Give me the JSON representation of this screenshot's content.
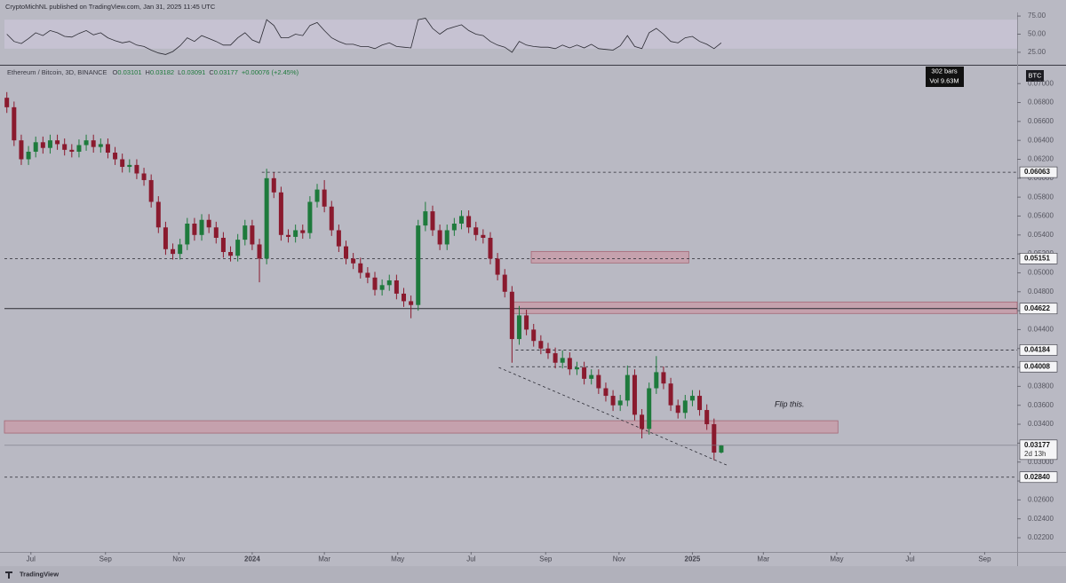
{
  "chart_data": {
    "type": "candlestick",
    "publisher": "CryptoMichNL published on TradingView.com, Jan 31, 2025 11:45 UTC",
    "title": "Ethereum / Bitcoin, 3D, BINANCE",
    "ohlc_labels": [
      "O",
      "H",
      "L",
      "C"
    ],
    "change": "+0.00076 (+2.45%)",
    "info": [
      "302 bars",
      "Vol 9.63M"
    ],
    "currency": "BTC",
    "annotation": "Flip this.",
    "brand": "TradingView",
    "up_color": "#1e7a3c",
    "down_color": "#8a1a2e",
    "xlim": [
      "2023-06-09",
      "2025-09-28"
    ],
    "xticks": [
      {
        "value": "2023-07-01",
        "label": "Jul"
      },
      {
        "value": "2023-09-01",
        "label": "Sep"
      },
      {
        "value": "2023-11-01",
        "label": "Nov"
      },
      {
        "value": "2024-01-01",
        "label": "2024"
      },
      {
        "value": "2024-03-01",
        "label": "Mar"
      },
      {
        "value": "2024-05-01",
        "label": "May"
      },
      {
        "value": "2024-07-01",
        "label": "Jul"
      },
      {
        "value": "2024-09-01",
        "label": "Sep"
      },
      {
        "value": "2024-11-01",
        "label": "Nov"
      },
      {
        "value": "2025-01-01",
        "label": "2025"
      },
      {
        "value": "2025-03-01",
        "label": "Mar"
      },
      {
        "value": "2025-05-01",
        "label": "May"
      },
      {
        "value": "2025-07-01",
        "label": "Jul"
      },
      {
        "value": "2025-09-01",
        "label": "Sep"
      }
    ],
    "ylim": [
      0.0205,
      0.0718
    ],
    "yticks": [
      {
        "value": 0.022,
        "label": "0.02200"
      },
      {
        "value": 0.024,
        "label": "0.02400"
      },
      {
        "value": 0.026,
        "label": "0.02600"
      },
      {
        "value": 0.028,
        "label": "0.02800"
      },
      {
        "value": 0.03,
        "label": "0.03000"
      },
      {
        "value": 0.032,
        "label": "0.03200"
      },
      {
        "value": 0.034,
        "label": "0.03400"
      },
      {
        "value": 0.036,
        "label": "0.03600"
      },
      {
        "value": 0.038,
        "label": "0.03800"
      },
      {
        "value": 0.04,
        "label": "0.04000"
      },
      {
        "value": 0.042,
        "label": "0.04200"
      },
      {
        "value": 0.044,
        "label": "0.04400"
      },
      {
        "value": 0.046,
        "label": "0.04600"
      },
      {
        "value": 0.048,
        "label": "0.04800"
      },
      {
        "value": 0.05,
        "label": "0.05000"
      },
      {
        "value": 0.052,
        "label": "0.05200"
      },
      {
        "value": 0.054,
        "label": "0.05400"
      },
      {
        "value": 0.056,
        "label": "0.05600"
      },
      {
        "value": 0.058,
        "label": "0.05800"
      },
      {
        "value": 0.06,
        "label": "0.06000"
      },
      {
        "value": 0.062,
        "label": "0.06200"
      },
      {
        "value": 0.064,
        "label": "0.06400"
      },
      {
        "value": 0.066,
        "label": "0.06600"
      },
      {
        "value": 0.068,
        "label": "0.06800"
      },
      {
        "value": 0.07,
        "label": "0.07000"
      }
    ],
    "x": [
      "2023-06-11",
      "2023-06-17",
      "2023-06-23",
      "2023-06-29",
      "2023-07-05",
      "2023-07-11",
      "2023-07-17",
      "2023-07-23",
      "2023-07-29",
      "2023-08-04",
      "2023-08-10",
      "2023-08-16",
      "2023-08-22",
      "2023-08-28",
      "2023-09-03",
      "2023-09-09",
      "2023-09-15",
      "2023-09-21",
      "2023-09-27",
      "2023-10-03",
      "2023-10-09",
      "2023-10-15",
      "2023-10-21",
      "2023-10-27",
      "2023-11-02",
      "2023-11-08",
      "2023-11-14",
      "2023-11-20",
      "2023-11-26",
      "2023-12-02",
      "2023-12-08",
      "2023-12-14",
      "2023-12-20",
      "2023-12-26",
      "2024-01-01",
      "2024-01-07",
      "2024-01-13",
      "2024-01-19",
      "2024-01-25",
      "2024-01-31",
      "2024-02-06",
      "2024-02-12",
      "2024-02-18",
      "2024-02-24",
      "2024-03-01",
      "2024-03-07",
      "2024-03-13",
      "2024-03-19",
      "2024-03-25",
      "2024-03-31",
      "2024-04-06",
      "2024-04-12",
      "2024-04-18",
      "2024-04-24",
      "2024-04-30",
      "2024-05-06",
      "2024-05-12",
      "2024-05-18",
      "2024-05-24",
      "2024-05-30",
      "2024-06-05",
      "2024-06-11",
      "2024-06-17",
      "2024-06-23",
      "2024-06-29",
      "2024-07-05",
      "2024-07-11",
      "2024-07-17",
      "2024-07-23",
      "2024-07-29",
      "2024-08-04",
      "2024-08-10",
      "2024-08-16",
      "2024-08-22",
      "2024-08-28",
      "2024-09-03",
      "2024-09-09",
      "2024-09-15",
      "2024-09-21",
      "2024-09-27",
      "2024-10-03",
      "2024-10-09",
      "2024-10-15",
      "2024-10-21",
      "2024-10-27",
      "2024-11-02",
      "2024-11-08",
      "2024-11-14",
      "2024-11-20",
      "2024-11-26",
      "2024-12-02",
      "2024-12-08",
      "2024-12-14",
      "2024-12-20",
      "2024-12-26",
      "2025-01-01",
      "2025-01-07",
      "2025-01-13",
      "2025-01-19",
      "2025-01-25"
    ],
    "open": [
      0.0685,
      0.0675,
      0.064,
      0.062,
      0.0628,
      0.0638,
      0.0632,
      0.064,
      0.0636,
      0.063,
      0.0628,
      0.0635,
      0.064,
      0.0633,
      0.0636,
      0.0627,
      0.062,
      0.0612,
      0.0614,
      0.0605,
      0.0598,
      0.0575,
      0.0548,
      0.0525,
      0.052,
      0.053,
      0.0552,
      0.054,
      0.0556,
      0.0548,
      0.0537,
      0.0522,
      0.0518,
      0.0535,
      0.055,
      0.053,
      0.0515,
      0.06,
      0.0585,
      0.054,
      0.0538,
      0.0545,
      0.0542,
      0.0575,
      0.0588,
      0.057,
      0.0545,
      0.0528,
      0.0515,
      0.051,
      0.05,
      0.0495,
      0.0482,
      0.0487,
      0.0492,
      0.0478,
      0.047,
      0.0466,
      0.055,
      0.0565,
      0.0545,
      0.053,
      0.0545,
      0.0552,
      0.056,
      0.0548,
      0.054,
      0.0537,
      0.0515,
      0.0498,
      0.048,
      0.043,
      0.0455,
      0.044,
      0.0428,
      0.042,
      0.0415,
      0.0405,
      0.041,
      0.0398,
      0.04,
      0.0388,
      0.0392,
      0.0378,
      0.037,
      0.036,
      0.0365,
      0.0392,
      0.035,
      0.0335,
      0.0378,
      0.0395,
      0.0383,
      0.036,
      0.0352,
      0.0365,
      0.037,
      0.0355,
      0.034,
      0.03101
    ],
    "high": [
      0.0691,
      0.0681,
      0.0646,
      0.0634,
      0.0644,
      0.0644,
      0.0646,
      0.0646,
      0.0642,
      0.0636,
      0.0641,
      0.0646,
      0.0646,
      0.0642,
      0.0642,
      0.0633,
      0.0626,
      0.062,
      0.062,
      0.0611,
      0.0604,
      0.0581,
      0.0554,
      0.0531,
      0.0536,
      0.0558,
      0.0558,
      0.0562,
      0.0562,
      0.0554,
      0.0543,
      0.0528,
      0.0541,
      0.0556,
      0.0556,
      0.0536,
      0.061,
      0.0606,
      0.0591,
      0.0546,
      0.0551,
      0.0551,
      0.0581,
      0.0594,
      0.0598,
      0.0576,
      0.0551,
      0.0534,
      0.0521,
      0.0516,
      0.0506,
      0.0501,
      0.0493,
      0.0498,
      0.0498,
      0.0484,
      0.0476,
      0.0556,
      0.0575,
      0.0571,
      0.0551,
      0.0551,
      0.0558,
      0.0566,
      0.0566,
      0.0554,
      0.0546,
      0.0543,
      0.0521,
      0.0504,
      0.0486,
      0.0465,
      0.0461,
      0.0446,
      0.0434,
      0.0426,
      0.0421,
      0.0418,
      0.0416,
      0.0406,
      0.0406,
      0.0398,
      0.0398,
      0.0384,
      0.0376,
      0.0371,
      0.0402,
      0.0398,
      0.0356,
      0.0384,
      0.0412,
      0.0401,
      0.0389,
      0.0366,
      0.0371,
      0.0376,
      0.0376,
      0.0361,
      0.0346,
      0.03182
    ],
    "low": [
      0.0669,
      0.0634,
      0.0614,
      0.0614,
      0.0622,
      0.0626,
      0.0626,
      0.063,
      0.0624,
      0.0622,
      0.0622,
      0.0629,
      0.0627,
      0.0627,
      0.0621,
      0.0614,
      0.0606,
      0.0606,
      0.0599,
      0.0592,
      0.0569,
      0.0542,
      0.0519,
      0.0514,
      0.0514,
      0.0524,
      0.0534,
      0.0534,
      0.0542,
      0.0531,
      0.0516,
      0.0512,
      0.0512,
      0.0529,
      0.0524,
      0.049,
      0.0509,
      0.0579,
      0.0534,
      0.0532,
      0.0532,
      0.0536,
      0.0536,
      0.0569,
      0.0564,
      0.0539,
      0.0522,
      0.0509,
      0.0504,
      0.0494,
      0.0489,
      0.0476,
      0.0476,
      0.0481,
      0.0472,
      0.0464,
      0.0452,
      0.046,
      0.0544,
      0.0539,
      0.0524,
      0.0524,
      0.0539,
      0.0546,
      0.0542,
      0.0534,
      0.0531,
      0.0509,
      0.0492,
      0.0474,
      0.0405,
      0.0424,
      0.0434,
      0.0422,
      0.0414,
      0.0409,
      0.0399,
      0.0399,
      0.0392,
      0.0392,
      0.0382,
      0.0382,
      0.0372,
      0.0364,
      0.0354,
      0.0354,
      0.0359,
      0.0344,
      0.0325,
      0.0329,
      0.0372,
      0.0377,
      0.0354,
      0.0346,
      0.0346,
      0.0359,
      0.0349,
      0.0334,
      0.0302,
      0.03091
    ],
    "close": [
      0.0675,
      0.064,
      0.062,
      0.0628,
      0.0638,
      0.0632,
      0.064,
      0.0636,
      0.063,
      0.0628,
      0.0635,
      0.064,
      0.0633,
      0.0636,
      0.0627,
      0.062,
      0.0612,
      0.0614,
      0.0605,
      0.0598,
      0.0575,
      0.0548,
      0.0525,
      0.052,
      0.053,
      0.0552,
      0.054,
      0.0556,
      0.0548,
      0.0537,
      0.0522,
      0.0518,
      0.0535,
      0.055,
      0.053,
      0.0515,
      0.06,
      0.0585,
      0.054,
      0.0538,
      0.0545,
      0.0542,
      0.0575,
      0.0588,
      0.057,
      0.0545,
      0.0528,
      0.0515,
      0.051,
      0.05,
      0.0495,
      0.0482,
      0.0487,
      0.0492,
      0.0478,
      0.047,
      0.0466,
      0.055,
      0.0565,
      0.0545,
      0.053,
      0.0545,
      0.0552,
      0.056,
      0.0548,
      0.054,
      0.0537,
      0.0515,
      0.0498,
      0.048,
      0.043,
      0.0455,
      0.044,
      0.0428,
      0.042,
      0.0415,
      0.0405,
      0.041,
      0.0398,
      0.04,
      0.0388,
      0.0392,
      0.0378,
      0.037,
      0.036,
      0.0365,
      0.0392,
      0.035,
      0.0335,
      0.0378,
      0.0395,
      0.0383,
      0.036,
      0.0352,
      0.0365,
      0.037,
      0.0355,
      0.034,
      0.031,
      0.03177
    ],
    "countdown": "2d 13h",
    "levels": [
      {
        "value": 0.06063,
        "start": "2024-01-09",
        "style": "dashed"
      },
      {
        "value": 0.05151,
        "start": "2023-06-09",
        "style": "dashed"
      },
      {
        "value": 0.04622,
        "start": "2023-06-09",
        "style": "solid"
      },
      {
        "value": 0.04184,
        "start": "2024-08-07",
        "style": "dashed"
      },
      {
        "value": 0.04008,
        "start": "2024-08-03",
        "style": "dashed"
      },
      {
        "value": 0.0284,
        "label": "0.02840",
        "start": "2023-06-09",
        "style": "dashed"
      }
    ],
    "zones": [
      {
        "low": 0.05104,
        "high": 0.05226,
        "start": "2024-08-20",
        "end": "2024-12-29"
      },
      {
        "low": 0.0457,
        "high": 0.04692,
        "start": "2024-08-03",
        "end": "2025-09-28"
      },
      {
        "low": 0.03306,
        "high": 0.03437,
        "start": "2023-06-09",
        "end": "2025-05-02"
      }
    ],
    "zone_color": "#c99aa6",
    "trendline": {
      "start": "2024-07-24",
      "start_value": 0.04,
      "end": "2025-01-31",
      "end_value": 0.0296
    },
    "rsi": {
      "values": [
        50,
        40,
        37,
        44,
        52,
        48,
        55,
        52,
        47,
        46,
        51,
        55,
        49,
        52,
        45,
        41,
        38,
        40,
        35,
        33,
        28,
        24,
        22,
        26,
        34,
        45,
        40,
        48,
        44,
        40,
        35,
        35,
        45,
        52,
        42,
        38,
        70,
        62,
        45,
        45,
        50,
        48,
        62,
        66,
        55,
        45,
        40,
        36,
        36,
        33,
        33,
        30,
        35,
        38,
        33,
        32,
        31,
        70,
        72,
        58,
        50,
        57,
        60,
        63,
        55,
        50,
        48,
        40,
        35,
        32,
        25,
        40,
        35,
        33,
        32,
        32,
        30,
        35,
        31,
        35,
        31,
        36,
        30,
        29,
        28,
        34,
        48,
        33,
        30,
        52,
        58,
        50,
        40,
        38,
        45,
        47,
        40,
        36,
        30,
        38
      ],
      "color": "#2b2b33",
      "band": [
        30,
        70
      ],
      "ylim": [
        9,
        80
      ],
      "yticks": [
        {
          "value": 25,
          "label": "25.00"
        },
        {
          "value": 50,
          "label": "50.00"
        },
        {
          "value": 75,
          "label": "75.00"
        }
      ]
    }
  }
}
